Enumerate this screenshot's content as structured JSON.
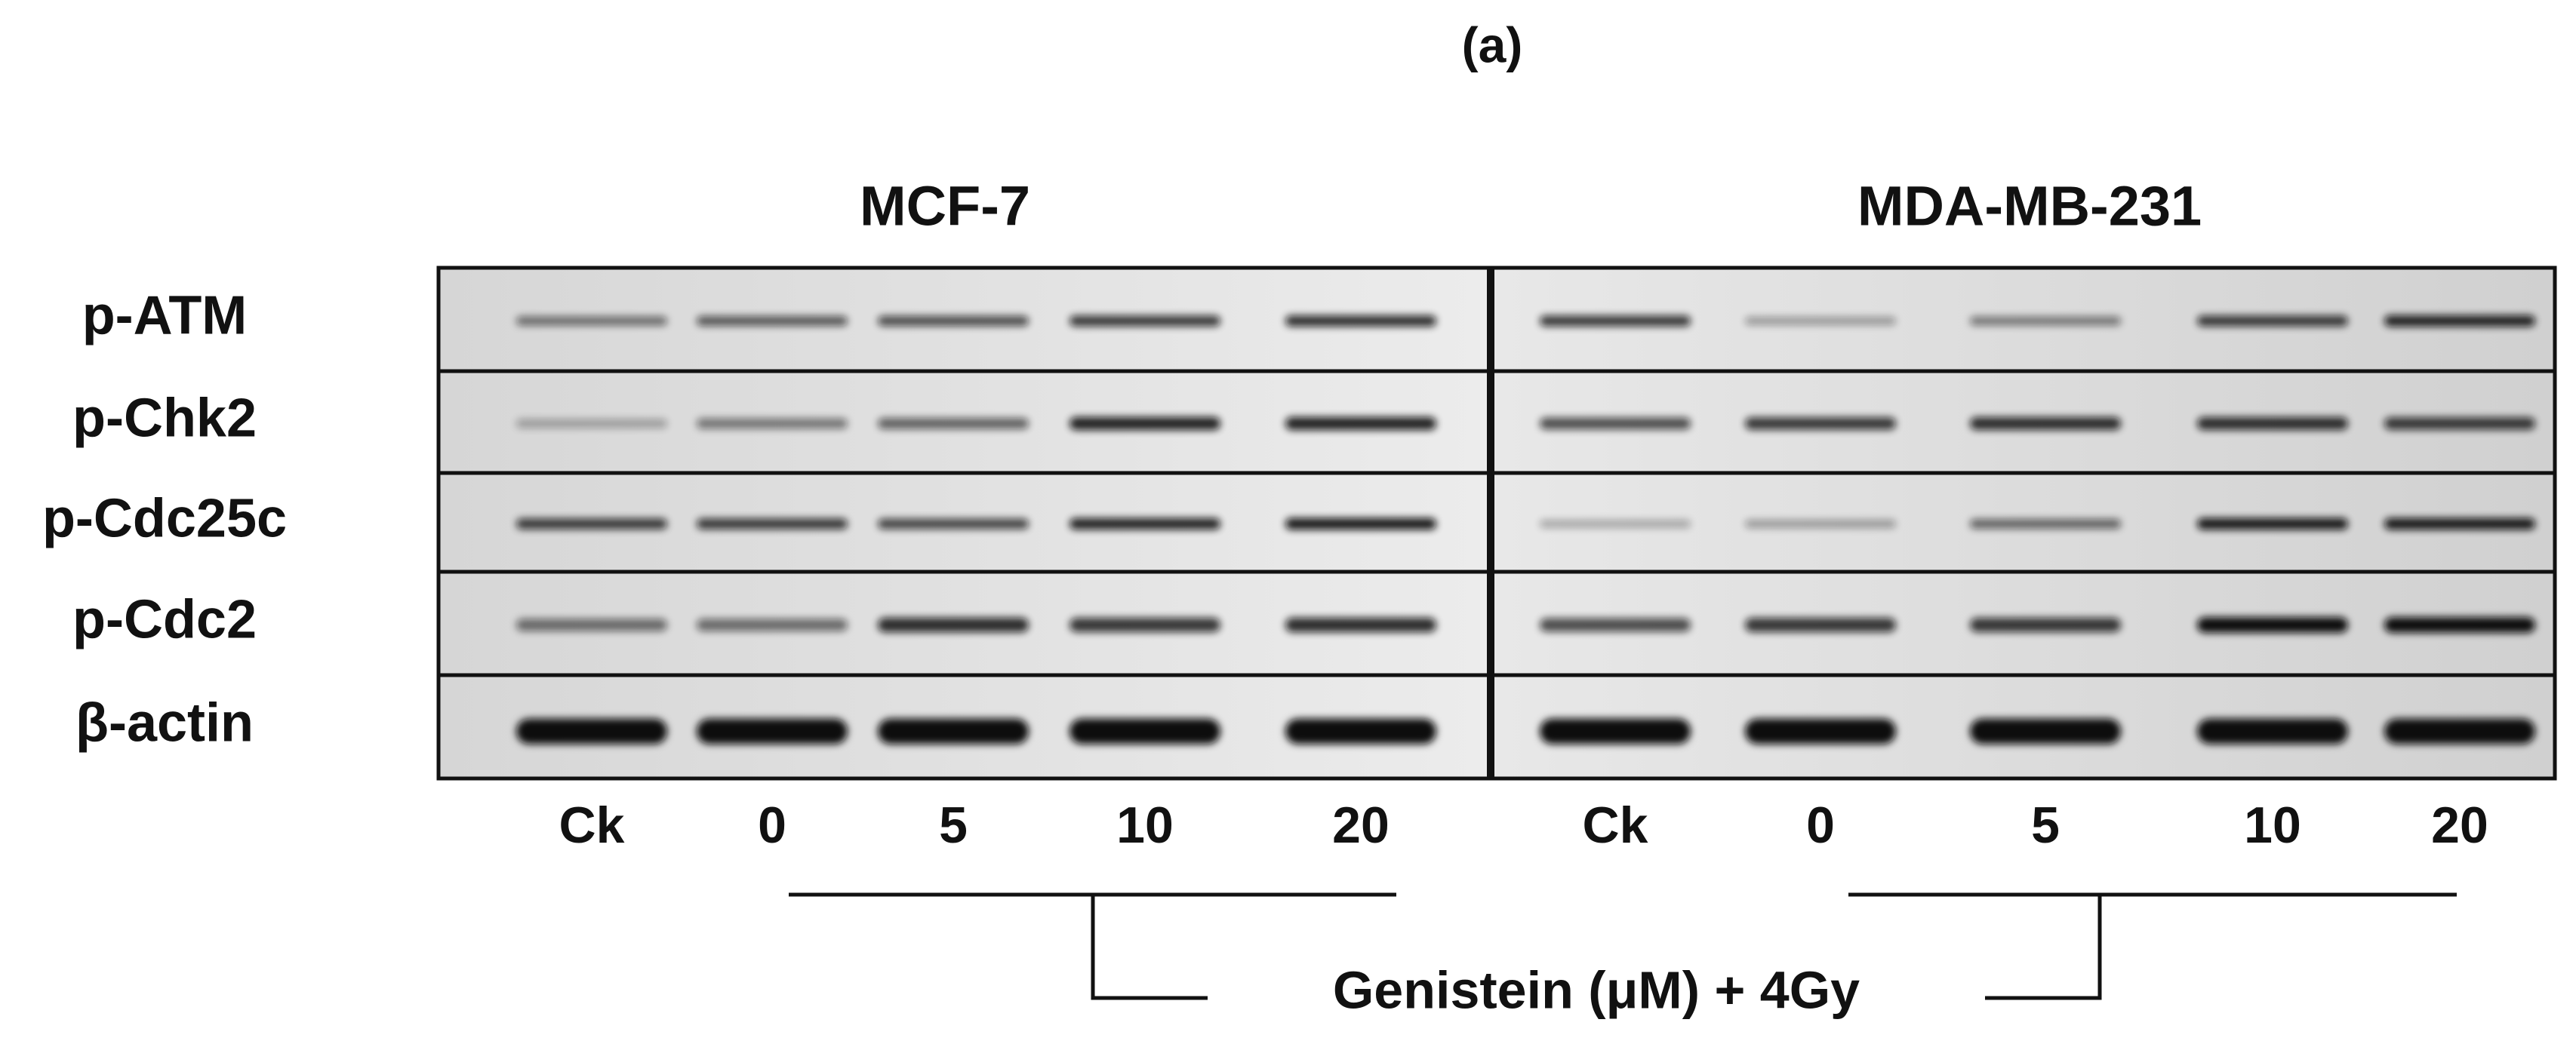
{
  "figure": {
    "title": "(a)",
    "panels": [
      {
        "label": "MCF-7",
        "lanes": [
          "Ck",
          "0",
          "5",
          "10",
          "20"
        ]
      },
      {
        "label": "MDA-MB-231",
        "lanes": [
          "Ck",
          "0",
          "5",
          "10",
          "20"
        ]
      }
    ],
    "rows": [
      "p-ATM",
      "p-Chk2",
      "p-Cdc25c",
      "p-Cdc2",
      "β-actin"
    ],
    "treatment": "Genistein (μM) + 4Gy"
  }
}
